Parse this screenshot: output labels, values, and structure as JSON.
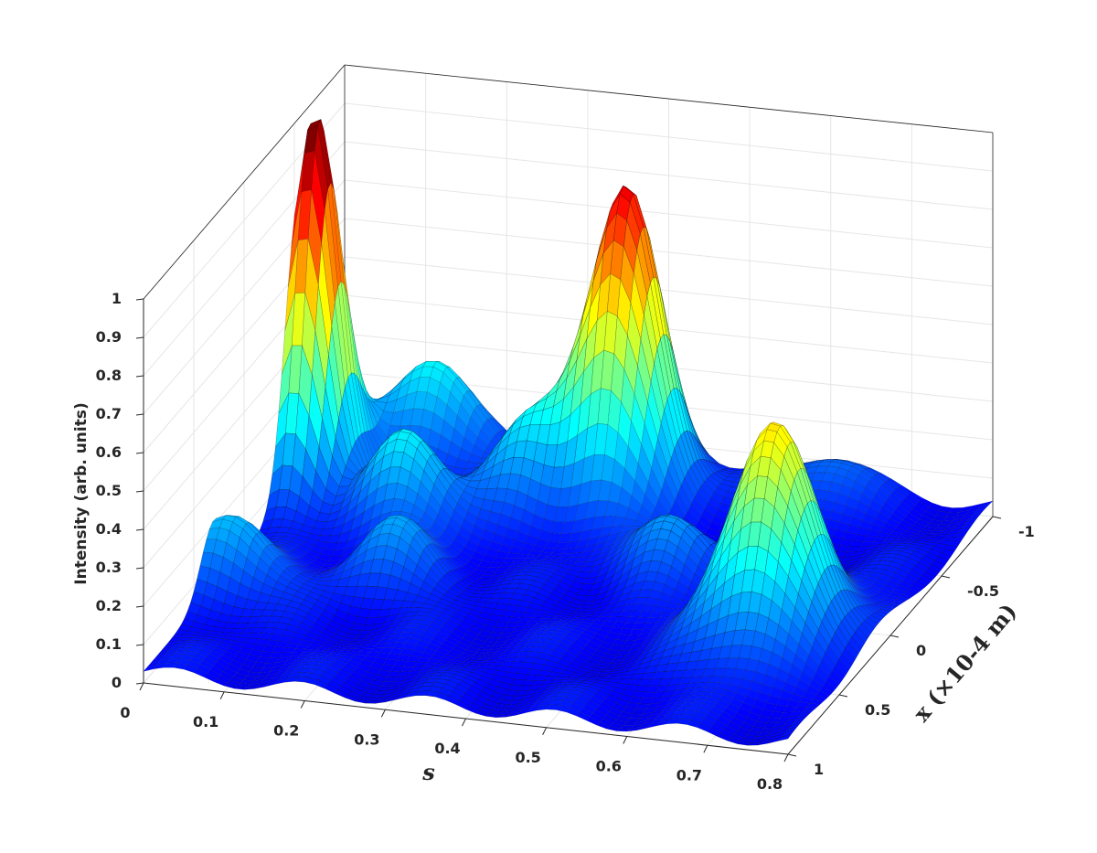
{
  "chart_data": {
    "type": "surface",
    "view": "3d-perspective",
    "colormap": "jet",
    "grid": true,
    "x_axis": {
      "label": "s",
      "range": [
        0,
        0.8
      ],
      "ticks": [
        "0",
        "0.1",
        "0.2",
        "0.3",
        "0.4",
        "0.5",
        "0.6",
        "0.7",
        "0.8"
      ]
    },
    "y_axis": {
      "label": "x (×10-4 m)",
      "range": [
        -1,
        1
      ],
      "ticks": [
        "-1",
        "-0.5",
        "0",
        "0.5",
        "1"
      ]
    },
    "z_axis": {
      "label": "Intensity (arb. units)",
      "range": [
        0,
        1
      ],
      "ticks": [
        "0",
        "0.1",
        "0.2",
        "0.3",
        "0.4",
        "0.5",
        "0.6",
        "0.7",
        "0.8",
        "0.9",
        "1"
      ]
    },
    "peaks": [
      {
        "s": 0.02,
        "x": -0.55,
        "intensity": 1.0
      },
      {
        "s": 0.38,
        "x": -0.75,
        "intensity": 0.8
      },
      {
        "s": 0.68,
        "x": 0.2,
        "intensity": 0.55
      }
    ],
    "secondary_lobes": [
      {
        "s": 0.12,
        "x": -0.9,
        "intensity": 0.28
      },
      {
        "s": 0.16,
        "x": -0.35,
        "intensity": 0.25
      },
      {
        "s": 0.28,
        "x": -0.6,
        "intensity": 0.22
      },
      {
        "s": 0.02,
        "x": 0.3,
        "intensity": 0.2
      },
      {
        "s": 0.2,
        "x": 0.1,
        "intensity": 0.15
      },
      {
        "s": 0.5,
        "x": -0.2,
        "intensity": 0.15
      },
      {
        "s": 0.6,
        "x": -0.9,
        "intensity": 0.12
      }
    ]
  }
}
